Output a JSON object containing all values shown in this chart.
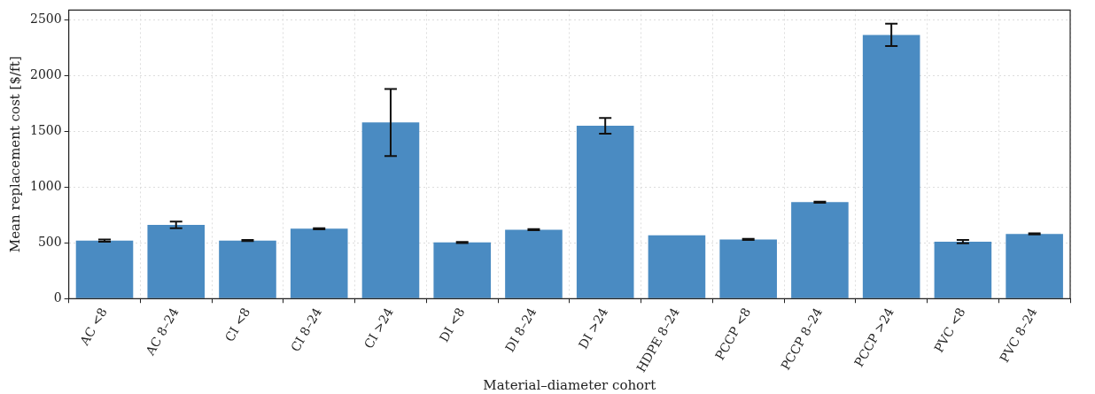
{
  "chart_data": {
    "type": "bar",
    "xlabel": "Material–diameter cohort",
    "ylabel": "Mean replacement cost [$/ft]",
    "categories": [
      "AC <8",
      "AC 8–24",
      "CI <8",
      "CI 8–24",
      "CI >24",
      "DI <8",
      "DI 8–24",
      "DI >24",
      "HDPE 8–24",
      "PCCP <8",
      "PCCP 8–24",
      "PCCP >24",
      "PVC <8",
      "PVC 8–24"
    ],
    "values": [
      520,
      660,
      520,
      626,
      1578,
      503,
      617,
      1548,
      568,
      530,
      864,
      2363,
      510,
      580
    ],
    "errors": [
      10,
      30,
      5,
      5,
      300,
      5,
      5,
      70,
      null,
      5,
      5,
      100,
      15,
      5
    ],
    "color": "#4a8bc2",
    "ylim": [
      0,
      2585
    ],
    "yticks": [
      0,
      500,
      1000,
      1500,
      2000,
      2500
    ],
    "grid": true
  }
}
